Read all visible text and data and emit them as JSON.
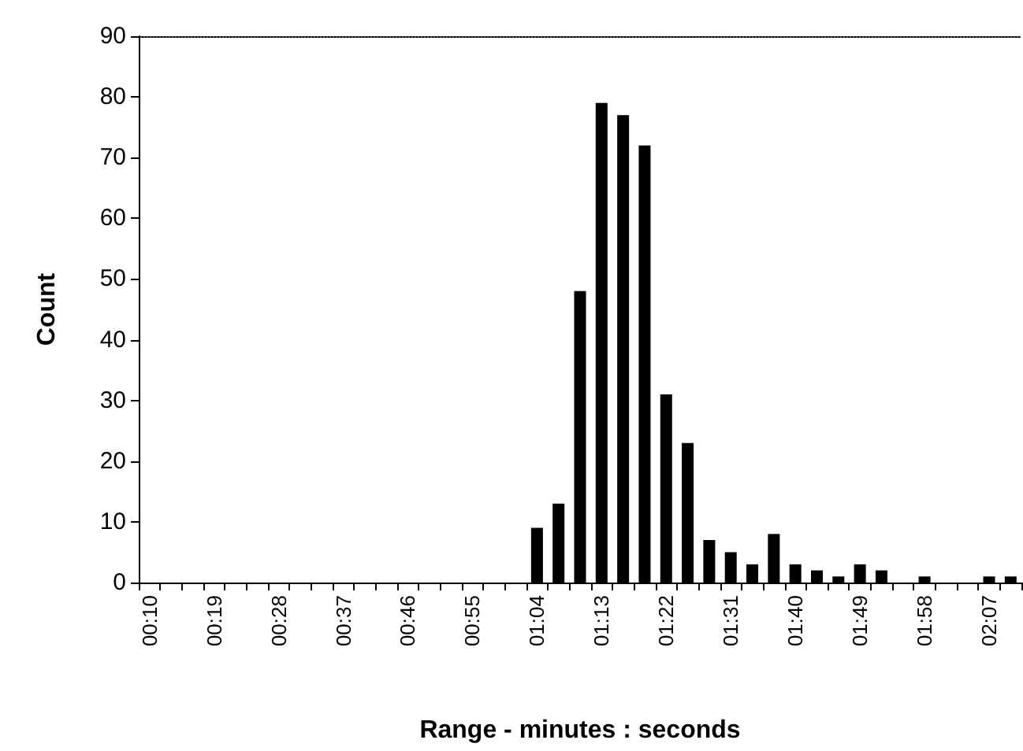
{
  "chart_data": {
    "type": "bar",
    "xlabel": "Range - minutes : seconds",
    "ylabel": "Count",
    "categories": [
      "00:10",
      null,
      null,
      "00:19",
      null,
      null,
      "00:28",
      null,
      null,
      "00:37",
      null,
      null,
      "00:46",
      null,
      null,
      "00:55",
      null,
      null,
      "01:04",
      null,
      null,
      "01:13",
      null,
      null,
      "01:22",
      null,
      null,
      "01:31",
      null,
      null,
      "01:40",
      null,
      null,
      "01:49",
      null,
      null,
      "01:58",
      null,
      null,
      "02:07",
      null
    ],
    "values": [
      0,
      0,
      0,
      0,
      0,
      0,
      0,
      0,
      0,
      0,
      0,
      0,
      0,
      0,
      0,
      0,
      0,
      0,
      9,
      13,
      48,
      79,
      77,
      72,
      31,
      23,
      7,
      5,
      3,
      8,
      3,
      2,
      1,
      3,
      2,
      0,
      1,
      0,
      0,
      1,
      1
    ],
    "color": "#000000",
    "ylim": [
      0,
      90
    ],
    "yticks": [
      0,
      10,
      20,
      30,
      40,
      50,
      60,
      70,
      80,
      90
    ],
    "grid": false
  }
}
